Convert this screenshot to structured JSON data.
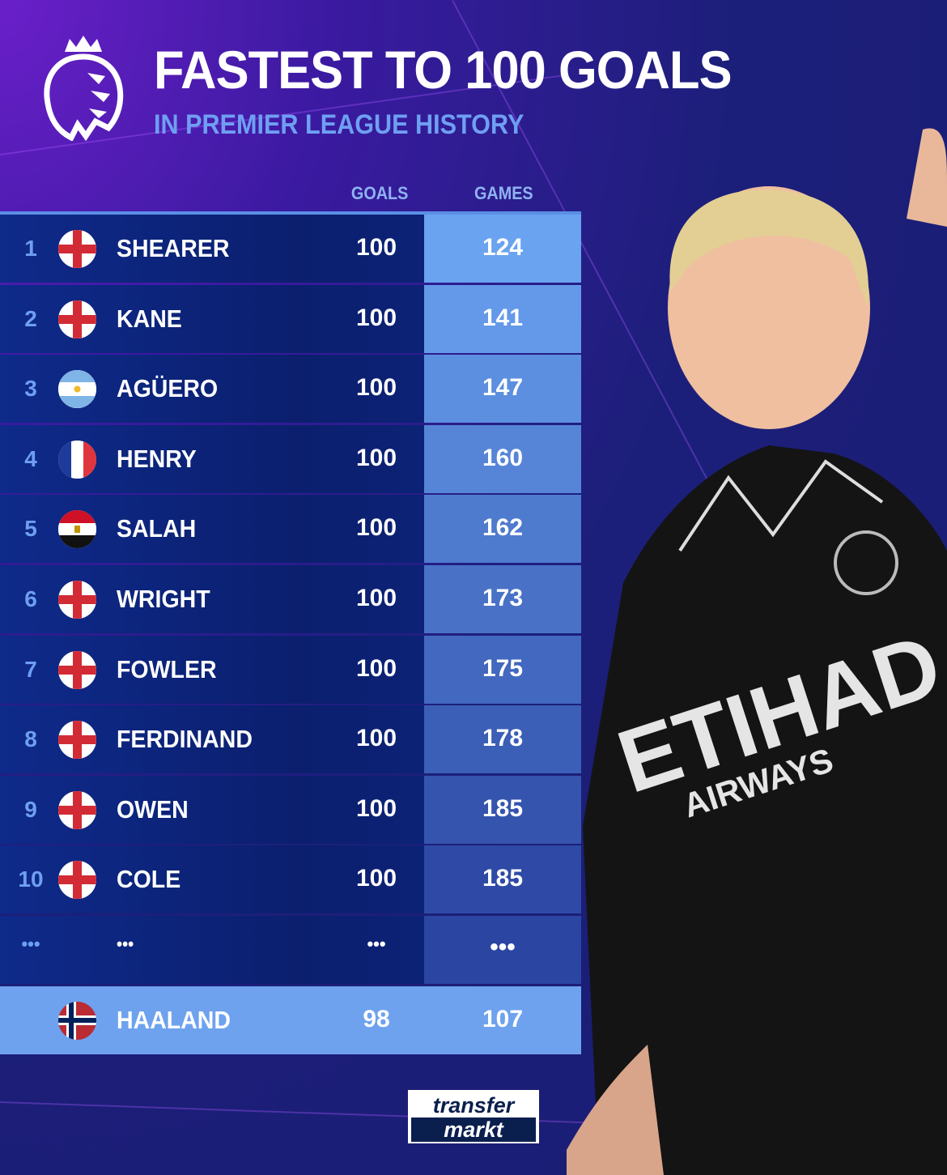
{
  "header": {
    "title": "FASTEST TO 100 GOALS",
    "subtitle": "IN PREMIER LEAGUE HISTORY",
    "logo": "premier-league-lion-logo"
  },
  "columns": {
    "goals": "GOALS",
    "games": "GAMES"
  },
  "rows": [
    {
      "rank": "1",
      "flag": "england",
      "name": "SHEARER",
      "goals": "100",
      "games": "124"
    },
    {
      "rank": "2",
      "flag": "england",
      "name": "KANE",
      "goals": "100",
      "games": "141"
    },
    {
      "rank": "3",
      "flag": "argentina",
      "name": "AGÜERO",
      "goals": "100",
      "games": "147"
    },
    {
      "rank": "4",
      "flag": "france",
      "name": "HENRY",
      "goals": "100",
      "games": "160"
    },
    {
      "rank": "5",
      "flag": "egypt",
      "name": "SALAH",
      "goals": "100",
      "games": "162"
    },
    {
      "rank": "6",
      "flag": "england",
      "name": "WRIGHT",
      "goals": "100",
      "games": "173"
    },
    {
      "rank": "7",
      "flag": "england",
      "name": "FOWLER",
      "goals": "100",
      "games": "175"
    },
    {
      "rank": "8",
      "flag": "england",
      "name": "FERDINAND",
      "goals": "100",
      "games": "178"
    },
    {
      "rank": "9",
      "flag": "england",
      "name": "OWEN",
      "goals": "100",
      "games": "185"
    },
    {
      "rank": "10",
      "flag": "england",
      "name": "COLE",
      "goals": "100",
      "games": "185"
    }
  ],
  "ellipsis": {
    "rank": "•••",
    "name": "•••",
    "goals": "•••",
    "games": "•••"
  },
  "highlight": {
    "flag": "norway",
    "name": "HAALAND",
    "goals": "98",
    "games": "107"
  },
  "branding": {
    "line1": "transfer",
    "line2": "markt"
  },
  "colors": {
    "highlight": "#6ea2ee",
    "games_top": "#6aa3f0",
    "games_bottom": "#2d4aa6",
    "row_dark": "#0b1f6e",
    "accent_text": "#6f9ff2"
  }
}
